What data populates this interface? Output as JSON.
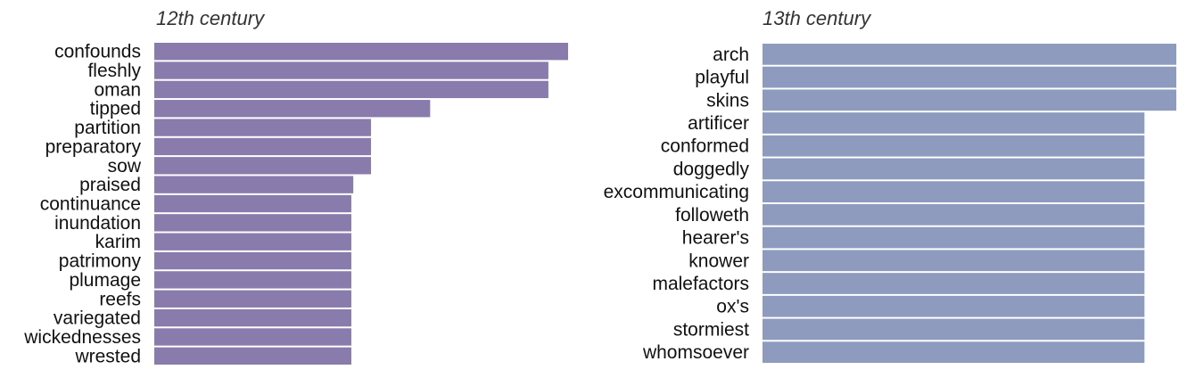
{
  "chart_data": [
    {
      "type": "bar",
      "orientation": "horizontal",
      "title": "12th century",
      "color": "#8A7BAD",
      "categories": [
        "confounds",
        "fleshly",
        "oman",
        "tipped",
        "partition",
        "preparatory",
        "sow",
        "praised",
        "continuance",
        "inundation",
        "karim",
        "patrimony",
        "plumage",
        "reefs",
        "variegated",
        "wickednesses",
        "wrested"
      ],
      "values": [
        21,
        20,
        20,
        14,
        11,
        11,
        11,
        10.1,
        10,
        10,
        10,
        10,
        10,
        10,
        10,
        10,
        10
      ],
      "xlim": [
        0,
        21
      ]
    },
    {
      "type": "bar",
      "orientation": "horizontal",
      "title": "13th century",
      "color": "#8E9BBF",
      "categories": [
        "arch",
        "playful",
        "skins",
        "artificer",
        "conformed",
        "doggedly",
        "excommunicating",
        "followeth",
        "hearer's",
        "knower",
        "malefactors",
        "ox's",
        "stormiest",
        "whomsoever"
      ],
      "values": [
        13,
        13,
        13,
        12,
        12,
        12,
        12,
        12,
        12,
        12,
        12,
        12,
        12,
        12
      ],
      "xlim": [
        0,
        13
      ]
    }
  ]
}
